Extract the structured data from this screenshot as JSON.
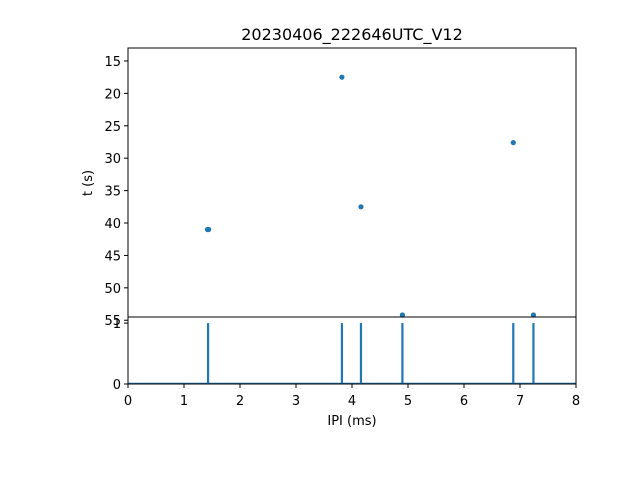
{
  "chart_data": {
    "title": "20230406_222646UTC_V12",
    "series_color": "#1f77b4",
    "top_panel": {
      "type": "scatter",
      "ylabel": "t (s)",
      "ylim_inverted": [
        13,
        54.5
      ],
      "yticks": [
        15,
        20,
        25,
        30,
        35,
        40,
        45,
        50,
        55
      ],
      "xlim": [
        0,
        8
      ],
      "points": [
        {
          "x": 1.42,
          "y": 41.0
        },
        {
          "x": 1.44,
          "y": 41.0
        },
        {
          "x": 3.82,
          "y": 17.5
        },
        {
          "x": 4.16,
          "y": 37.5
        },
        {
          "x": 4.9,
          "y": 55.9
        },
        {
          "x": 6.88,
          "y": 27.6
        },
        {
          "x": 7.24,
          "y": 55.6
        }
      ]
    },
    "bottom_panel": {
      "type": "line",
      "xlabel": "IPI (ms)",
      "xlim": [
        0,
        8
      ],
      "ylim": [
        0,
        1.1
      ],
      "xticks": [
        0,
        1,
        2,
        3,
        4,
        5,
        6,
        7,
        8
      ],
      "yticks": [
        0,
        1
      ],
      "spikes_x": [
        1.43,
        3.82,
        4.16,
        4.9,
        6.88,
        7.24
      ],
      "spike_height": 1
    }
  }
}
